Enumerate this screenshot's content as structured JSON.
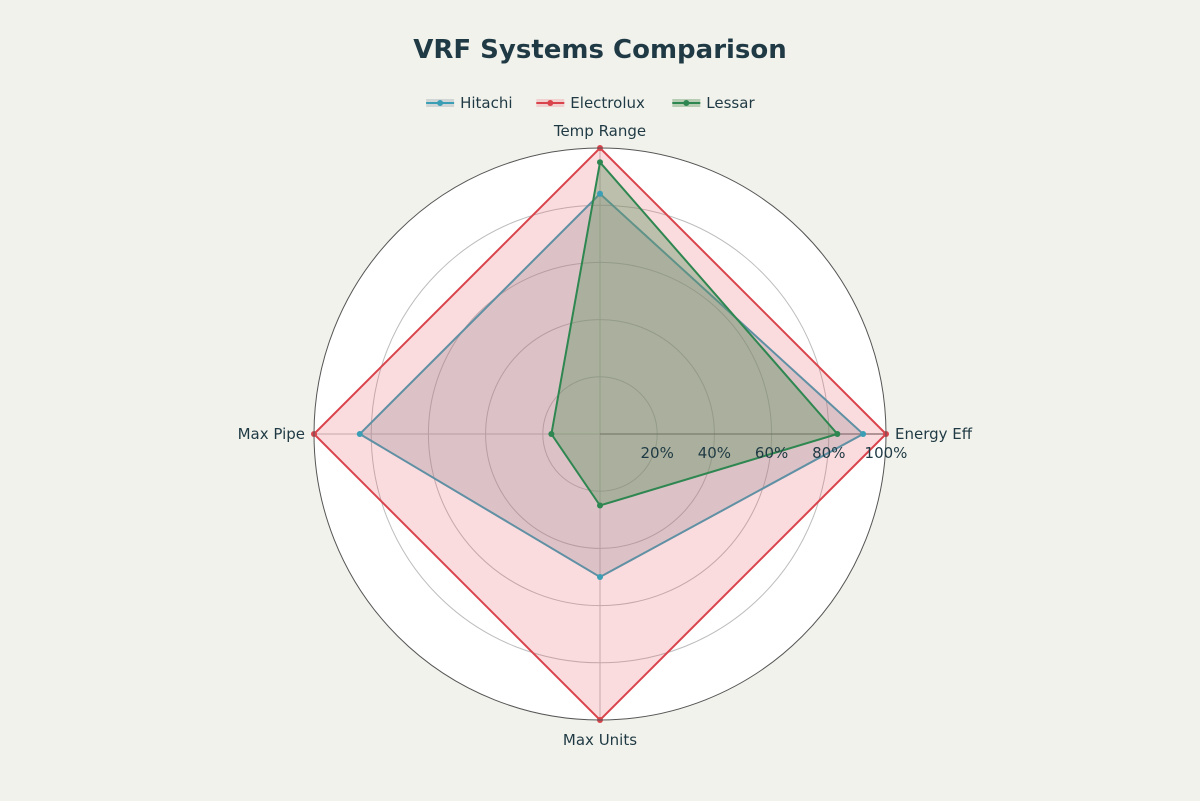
{
  "colors": {
    "background": "#f2f2ec",
    "plot_background": "#ffffff",
    "text": "#1f3a44",
    "grid": "#bdbdbd",
    "outer_ring": "#555555"
  },
  "chart_data": {
    "type": "radar",
    "title": "VRF Systems Comparison",
    "axes": [
      "Temp Range",
      "Energy Eff",
      "Max Units",
      "Max Pipe"
    ],
    "range": [
      0,
      100
    ],
    "ticks": [
      20,
      40,
      60,
      80,
      100
    ],
    "tick_labels": [
      "20%",
      "40%",
      "60%",
      "80%",
      "100%"
    ],
    "legend_position": "top-center",
    "series": [
      {
        "name": "Hitachi",
        "color": "#3a9fb5",
        "fill": "rgba(130,150,160,0.30)",
        "values": [
          84,
          92,
          50,
          84
        ]
      },
      {
        "name": "Electrolux",
        "color": "#d9434b",
        "fill": "rgba(230,90,105,0.22)",
        "values": [
          100,
          100,
          100,
          100
        ]
      },
      {
        "name": "Lessar",
        "color": "#2e8650",
        "fill": "rgba(95,150,95,0.40)",
        "values": [
          95,
          83,
          25,
          17
        ]
      }
    ]
  }
}
